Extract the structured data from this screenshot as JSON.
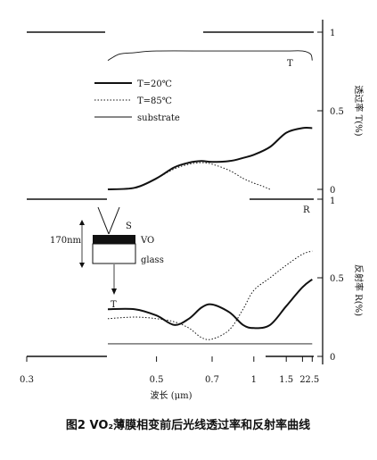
{
  "caption": "图2   VO₂薄膜相变前后光线透过率和反射率曲线",
  "chart_data": [
    {
      "type": "line",
      "panel": "transmittance",
      "ylabel": "透过率 T(%)",
      "ylim": [
        0,
        1
      ],
      "yticks": [
        "0",
        "0.5",
        "1"
      ],
      "xlim": [
        0.3,
        2.6
      ],
      "x_scale": "reciprocal",
      "xticks": [
        "0.3",
        "0.5",
        "0.7",
        "1",
        "1.5",
        "2",
        "2.5"
      ],
      "xlabel": "波长 (μm)",
      "legend": [
        "T=20℃",
        "T=85℃",
        "substrate"
      ],
      "curve_label": "T",
      "series": [
        {
          "name": "T=20℃",
          "style": "solid-thick",
          "x": [
            0.4,
            0.45,
            0.5,
            0.55,
            0.6,
            0.65,
            0.7,
            0.8,
            0.9,
            1.0,
            1.2,
            1.5,
            2.0,
            2.5
          ],
          "y": [
            0.0,
            0.01,
            0.07,
            0.14,
            0.17,
            0.18,
            0.175,
            0.18,
            0.2,
            0.22,
            0.27,
            0.36,
            0.39,
            0.39
          ]
        },
        {
          "name": "T=85℃",
          "style": "dotted",
          "x": [
            0.4,
            0.45,
            0.5,
            0.55,
            0.6,
            0.65,
            0.7,
            0.8,
            0.9,
            1.0,
            1.1,
            1.2
          ],
          "y": [
            0.0,
            0.01,
            0.07,
            0.13,
            0.16,
            0.17,
            0.16,
            0.12,
            0.07,
            0.04,
            0.02,
            0.0
          ]
        },
        {
          "name": "substrate",
          "style": "solid-thin",
          "x": [
            0.4,
            0.42,
            0.45,
            0.5,
            0.7,
            1.0,
            1.5,
            2.0,
            2.4,
            2.5
          ],
          "y": [
            0.82,
            0.86,
            0.87,
            0.88,
            0.88,
            0.88,
            0.88,
            0.88,
            0.86,
            0.82
          ]
        }
      ]
    },
    {
      "type": "line",
      "panel": "reflectance",
      "ylabel": "反射率 R(%)",
      "ylim": [
        0,
        1
      ],
      "yticks": [
        "0",
        "0.5",
        "1"
      ],
      "xlim": [
        0.3,
        2.6
      ],
      "x_scale": "reciprocal",
      "xticks": [
        "0.3",
        "0.5",
        "0.7",
        "1",
        "1.5",
        "2",
        "2.5"
      ],
      "xlabel": "波长 (μm)",
      "curve_label": "R",
      "series": [
        {
          "name": "T=20℃",
          "style": "solid-thick",
          "x": [
            0.4,
            0.45,
            0.5,
            0.55,
            0.6,
            0.65,
            0.7,
            0.8,
            0.9,
            1.0,
            1.2,
            1.5,
            2.0,
            2.5
          ],
          "y": [
            0.3,
            0.3,
            0.26,
            0.2,
            0.24,
            0.31,
            0.33,
            0.28,
            0.2,
            0.18,
            0.2,
            0.32,
            0.44,
            0.49
          ]
        },
        {
          "name": "T=85℃",
          "style": "dotted",
          "x": [
            0.4,
            0.45,
            0.5,
            0.55,
            0.6,
            0.65,
            0.7,
            0.8,
            0.9,
            1.0,
            1.2,
            1.5,
            2.0,
            2.5
          ],
          "y": [
            0.24,
            0.25,
            0.24,
            0.22,
            0.18,
            0.12,
            0.11,
            0.17,
            0.3,
            0.42,
            0.5,
            0.58,
            0.65,
            0.67
          ]
        },
        {
          "name": "substrate",
          "style": "solid-thin",
          "x": [
            0.4,
            2.5
          ],
          "y": [
            0.08,
            0.08
          ]
        }
      ]
    }
  ],
  "inset": {
    "thickness_label": "170nm",
    "film_label": "VO",
    "substrate_label": "glass",
    "source_label": "S",
    "transmitted_label": "T"
  }
}
